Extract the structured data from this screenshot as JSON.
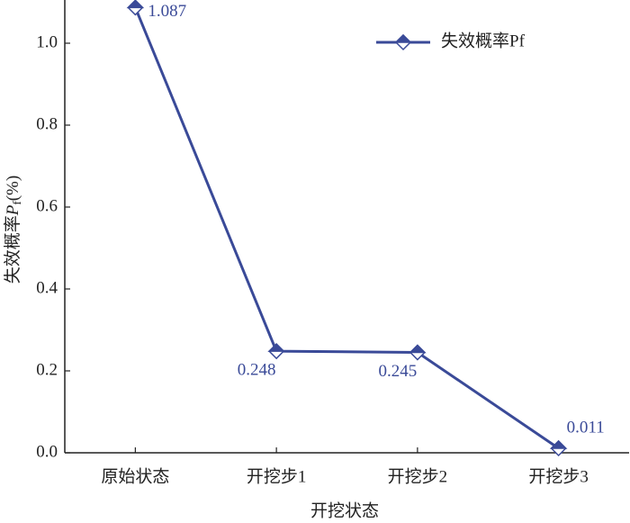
{
  "chart_data": {
    "type": "line",
    "xlabel": "开挖状态",
    "ylabel": [
      "失效概率",
      "P",
      "f",
      "(%)"
    ],
    "categories": [
      "原始状态",
      "开挖步1",
      "开挖步2",
      "开挖步3"
    ],
    "series": [
      {
        "name": "失效概率Pf",
        "color": "#3a4a98",
        "values": [
          1.087,
          0.248,
          0.245,
          0.011
        ]
      }
    ],
    "ylim": [
      0,
      1.1
    ],
    "yticks": [
      {
        "value": 0,
        "label": "0.0"
      },
      0.2,
      0.4,
      0.6,
      0.8,
      {
        "value": 1,
        "label": "1.0"
      }
    ],
    "legend": "upper right"
  }
}
